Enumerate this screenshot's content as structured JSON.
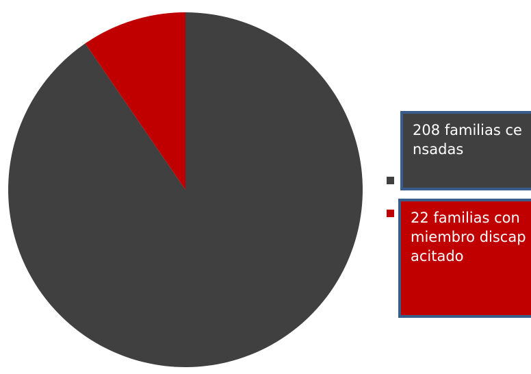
{
  "chart_data": {
    "type": "pie",
    "start_angle_deg": 0,
    "direction": "clockwise",
    "slices": [
      {
        "label": "208 familias censadas",
        "value": 208,
        "color": "#404040"
      },
      {
        "label": "22 familias con miembro discapacitado",
        "value": 22,
        "color": "#c00000"
      }
    ],
    "legend_position": "right",
    "legend": [
      {
        "text": "208 familias censadas",
        "color": "#404040"
      },
      {
        "text": "22 familias con miembro discapacitado",
        "color": "#c00000"
      }
    ]
  }
}
